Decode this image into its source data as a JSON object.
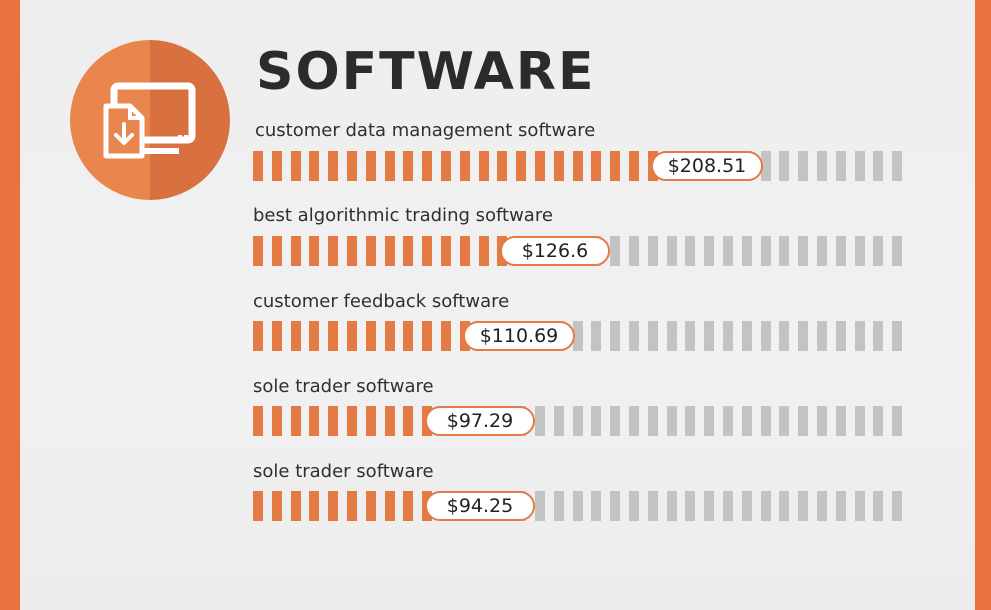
{
  "header": {
    "title": "SOFTWARE",
    "icon": "monitor-download-icon"
  },
  "colors": {
    "fill": "#e47a44",
    "empty": "#c3c3c3",
    "border": "#e9733f"
  },
  "chart_data": {
    "type": "bar",
    "orientation": "horizontal",
    "title": "SOFTWARE",
    "categories": [
      "customer data management software",
      "best algorithmic trading software",
      "customer feedback software",
      "sole trader software",
      "sole trader software"
    ],
    "values": [
      208.51,
      126.6,
      110.69,
      97.29,
      94.25
    ],
    "value_labels": [
      "$208.51",
      "$126.6",
      "$110.69",
      "$97.29",
      "$94.25"
    ],
    "xlim": [
      0,
      325
    ],
    "grid": false,
    "legend": "none"
  }
}
